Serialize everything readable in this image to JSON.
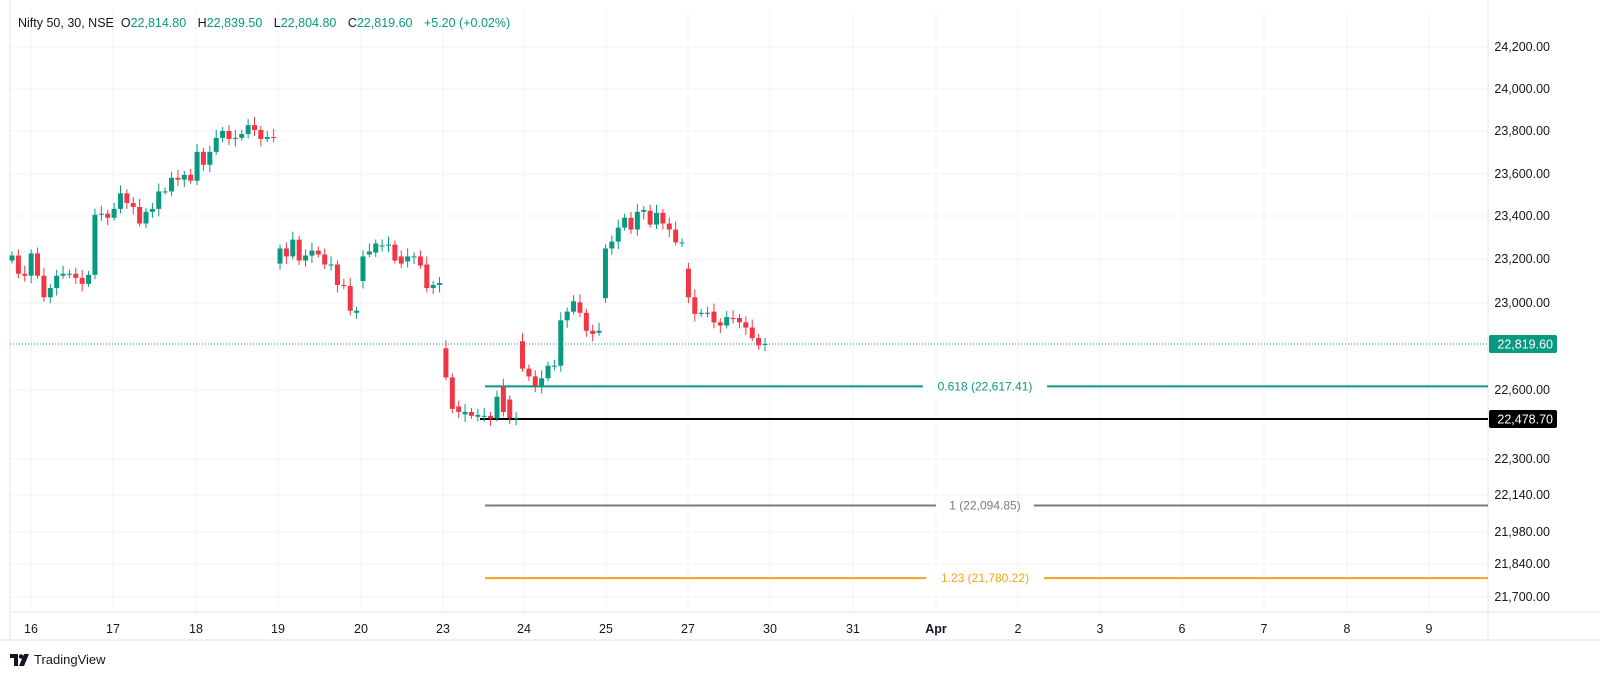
{
  "legend": {
    "symbol": "Nifty 50, 30, NSE",
    "open_label": "O",
    "open": "22,814.80",
    "high_label": "H",
    "high": "22,839.50",
    "low_label": "L",
    "low": "22,804.80",
    "close_label": "C",
    "close": "22,819.60",
    "change": "+5.20 (+0.02%)"
  },
  "branding": {
    "name": "TradingView"
  },
  "colors": {
    "up": "#089981",
    "down": "#f23645",
    "fib_0618": "#089981",
    "fib_1": "#787b86",
    "fib_123": "#f7a21b",
    "support": "#000000"
  },
  "chart_data": {
    "type": "candlestick",
    "title": "Nifty 50, 30, NSE",
    "y_ticks": [
      "24,200.00",
      "24,000.00",
      "23,800.00",
      "23,600.00",
      "23,400.00",
      "23,200.00",
      "23,000.00",
      "22,600.00",
      "22,300.00",
      "22,140.00",
      "21,980.00",
      "21,840.00",
      "21,700.00"
    ],
    "y_tick_values": [
      24200,
      24000,
      23800,
      23600,
      23400,
      23200,
      23000,
      22600,
      22300,
      22140,
      21980,
      21840,
      21700
    ],
    "x_ticks": [
      "16",
      "17",
      "18",
      "19",
      "20",
      "23",
      "24",
      "25",
      "27",
      "30",
      "31",
      "Apr",
      "2",
      "3",
      "6",
      "7",
      "8",
      "9"
    ],
    "last_price": {
      "value": 22819.6,
      "label": "22,819.60"
    },
    "support": {
      "value": 22478.7,
      "label": "22,478.70"
    },
    "fib_levels": [
      {
        "ratio": 0.618,
        "value": 22617.41,
        "label": "0.618 (22,617.41)",
        "color": "#089981"
      },
      {
        "ratio": 1,
        "value": 22094.85,
        "label": "1 (22,094.85)",
        "color": "#787b86"
      },
      {
        "ratio": 1.23,
        "value": 21780.22,
        "label": "1.23 (21,780.22)",
        "color": "#f7a21b"
      }
    ],
    "candles_oc": [
      [
        23193,
        23216
      ],
      [
        23216,
        23133
      ],
      [
        23133,
        23124
      ],
      [
        23124,
        23226
      ],
      [
        23226,
        23124
      ],
      [
        23124,
        23026
      ],
      [
        23026,
        23068
      ],
      [
        23068,
        23124
      ],
      [
        23124,
        23133
      ],
      [
        23133,
        23133
      ],
      [
        23133,
        23114
      ],
      [
        23114,
        23087
      ],
      [
        23087,
        23128
      ],
      [
        23128,
        23406
      ],
      [
        23406,
        23411
      ],
      [
        23411,
        23392
      ],
      [
        23392,
        23434
      ],
      [
        23434,
        23508
      ],
      [
        23508,
        23462
      ],
      [
        23462,
        23443
      ],
      [
        23443,
        23365
      ],
      [
        23365,
        23420
      ],
      [
        23420,
        23434
      ],
      [
        23434,
        23517
      ],
      [
        23517,
        23517
      ],
      [
        23517,
        23582
      ],
      [
        23582,
        23573
      ],
      [
        23573,
        23596
      ],
      [
        23596,
        23568
      ],
      [
        23568,
        23703
      ],
      [
        23703,
        23643
      ],
      [
        23643,
        23703
      ],
      [
        23703,
        23768
      ],
      [
        23768,
        23800
      ],
      [
        23800,
        23763
      ],
      [
        23763,
        23768
      ],
      [
        23768,
        23786
      ],
      [
        23786,
        23828
      ],
      [
        23828,
        23805
      ],
      [
        23805,
        23763
      ],
      [
        23763,
        23772
      ],
      [
        23772,
        23768
      ],
      [
        23179,
        23249
      ],
      [
        23249,
        23212
      ],
      [
        23212,
        23290
      ],
      [
        23290,
        23193
      ],
      [
        23193,
        23216
      ],
      [
        23216,
        23239
      ],
      [
        23239,
        23221
      ],
      [
        23221,
        23175
      ],
      [
        23175,
        23175
      ],
      [
        23175,
        23082
      ],
      [
        23082,
        23077
      ],
      [
        23077,
        22966
      ],
      [
        22957,
        22966
      ],
      [
        23100,
        23212
      ],
      [
        23221,
        23235
      ],
      [
        23230,
        23272
      ],
      [
        23263,
        23263
      ],
      [
        23267,
        23267
      ],
      [
        23267,
        23193
      ],
      [
        23212,
        23179
      ],
      [
        23189,
        23212
      ],
      [
        23212,
        23212
      ],
      [
        23212,
        23170
      ],
      [
        23175,
        23068
      ],
      [
        23068,
        23082
      ],
      [
        23082,
        23091
      ],
      [
        22799,
        22660
      ],
      [
        22660,
        22521
      ],
      [
        22531,
        22508
      ],
      [
        22498,
        22508
      ],
      [
        22508,
        22492
      ],
      [
        22488,
        22496
      ],
      [
        22492,
        22492
      ],
      [
        22492,
        22481
      ],
      [
        22481,
        22572
      ],
      [
        22615,
        22508
      ],
      [
        22560,
        22482
      ],
      [
        22484,
        22484
      ],
      [
        22832,
        22702
      ],
      [
        22702,
        22665
      ],
      [
        22665,
        22619
      ],
      [
        22619,
        22656
      ],
      [
        22656,
        22716
      ],
      [
        22716,
        22716
      ],
      [
        22716,
        22924
      ],
      [
        22924,
        22962
      ],
      [
        22962,
        23008
      ],
      [
        23003,
        22957
      ],
      [
        22957,
        22878
      ],
      [
        22878,
        22864
      ],
      [
        22869,
        22878
      ],
      [
        23022,
        23249
      ],
      [
        23249,
        23281
      ],
      [
        23281,
        23346
      ],
      [
        23346,
        23392
      ],
      [
        23392,
        23337
      ],
      [
        23337,
        23420
      ],
      [
        23420,
        23429
      ],
      [
        23425,
        23360
      ],
      [
        23360,
        23415
      ],
      [
        23415,
        23365
      ],
      [
        23365,
        23337
      ],
      [
        23337,
        23277
      ],
      [
        23277,
        23277
      ],
      [
        23156,
        23026
      ],
      [
        23026,
        22952
      ],
      [
        22952,
        22957
      ],
      [
        22957,
        22957
      ],
      [
        22962,
        22915
      ],
      [
        22915,
        22901
      ],
      [
        22901,
        22938
      ],
      [
        22934,
        22929
      ],
      [
        22934,
        22915
      ],
      [
        22915,
        22892
      ],
      [
        22892,
        22846
      ],
      [
        22846,
        22813
      ],
      [
        22815,
        22820
      ]
    ]
  }
}
